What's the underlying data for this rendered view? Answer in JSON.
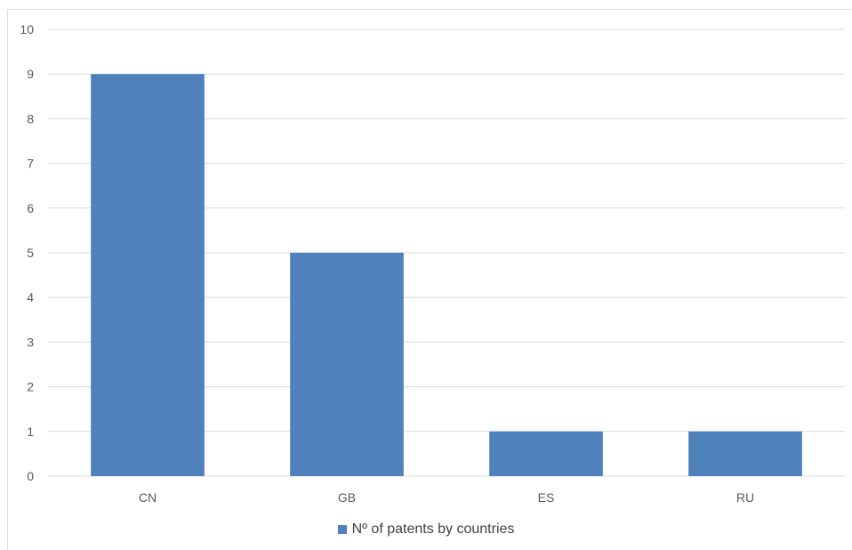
{
  "chart_data": {
    "type": "bar",
    "categories": [
      "CN",
      "GB",
      "ES",
      "RU"
    ],
    "series": [
      {
        "name": "Nº of patents by countries",
        "values": [
          9,
          5,
          1,
          1
        ]
      }
    ],
    "ylim": [
      0,
      10
    ],
    "yticks": [
      "0",
      "1",
      "2",
      "3",
      "4",
      "5",
      "6",
      "7",
      "8",
      "9",
      "10"
    ],
    "grid": true,
    "legend_position": "bottom",
    "colors": {
      "bar": "#4F81BD",
      "grid": "#d9d9d9",
      "text": "#595959"
    }
  }
}
